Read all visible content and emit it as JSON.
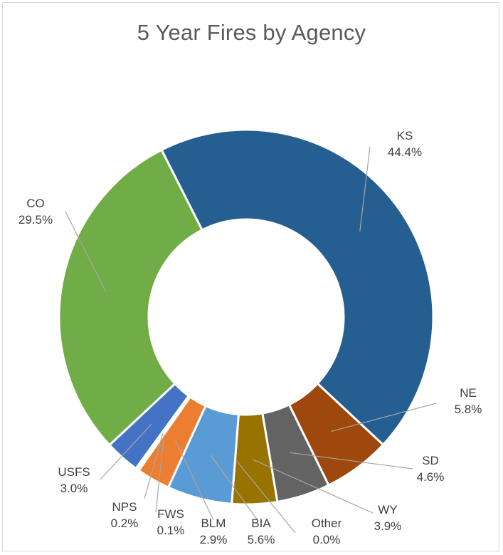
{
  "chart_data": {
    "type": "pie",
    "variant": "doughnut",
    "title": "5 Year Fires by Agency",
    "legend": "none",
    "slices": [
      {
        "name": "KS",
        "value": 44.4,
        "label": "44.4%",
        "color": "#255e91"
      },
      {
        "name": "NE",
        "value": 5.8,
        "label": "5.8%",
        "color": "#9e480e"
      },
      {
        "name": "SD",
        "value": 4.6,
        "label": "4.6%",
        "color": "#636363"
      },
      {
        "name": "WY",
        "value": 3.9,
        "label": "3.9%",
        "color": "#997300"
      },
      {
        "name": "Other",
        "value": 0.0,
        "label": "0.0%",
        "color": "#264478"
      },
      {
        "name": "BIA",
        "value": 5.6,
        "label": "5.6%",
        "color": "#5b9bd5"
      },
      {
        "name": "BLM",
        "value": 2.9,
        "label": "2.9%",
        "color": "#ed7d31"
      },
      {
        "name": "FWS",
        "value": 0.1,
        "label": "0.1%",
        "color": "#a5a5a5"
      },
      {
        "name": "NPS",
        "value": 0.2,
        "label": "0.2%",
        "color": "#ffc000"
      },
      {
        "name": "USFS",
        "value": 3.0,
        "label": "3.0%",
        "color": "#4472c4"
      },
      {
        "name": "CO",
        "value": 29.5,
        "label": "29.5%",
        "color": "#70ad47"
      }
    ]
  }
}
